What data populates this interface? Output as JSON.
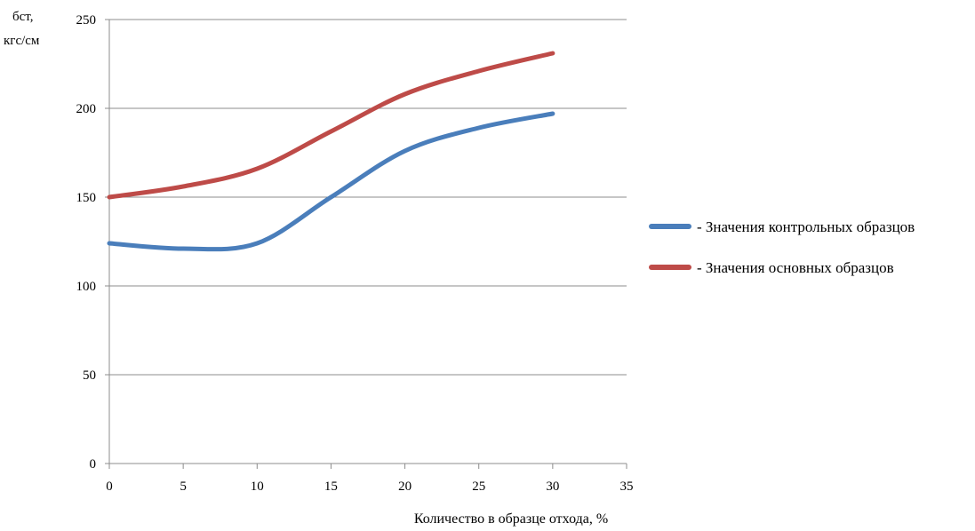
{
  "chart_data": {
    "type": "line",
    "title": "",
    "ylabel": [
      "бст,",
      "кгс/см"
    ],
    "xlabel": "Количество в образце отхода, %",
    "xlim": [
      0,
      35
    ],
    "ylim": [
      0,
      250
    ],
    "x_ticks": [
      "0",
      "5",
      "10",
      "15",
      "20",
      "25",
      "30",
      "35"
    ],
    "y_ticks": [
      "0",
      "50",
      "100",
      "150",
      "200",
      "250"
    ],
    "grid": {
      "horizontal": true,
      "vertical": false
    },
    "legend_position": "right",
    "series": [
      {
        "name": "- Значения контрольных образцов",
        "color": "#4a7ebb",
        "x": [
          0,
          5,
          10,
          15,
          20,
          25,
          30
        ],
        "y": [
          124,
          121,
          124,
          150,
          176,
          189,
          197
        ]
      },
      {
        "name": "- Значения основных образцов",
        "color": "#be4b48",
        "x": [
          0,
          5,
          10,
          15,
          20,
          25,
          30
        ],
        "y": [
          150,
          156,
          166,
          187,
          208,
          221,
          231
        ]
      }
    ]
  }
}
